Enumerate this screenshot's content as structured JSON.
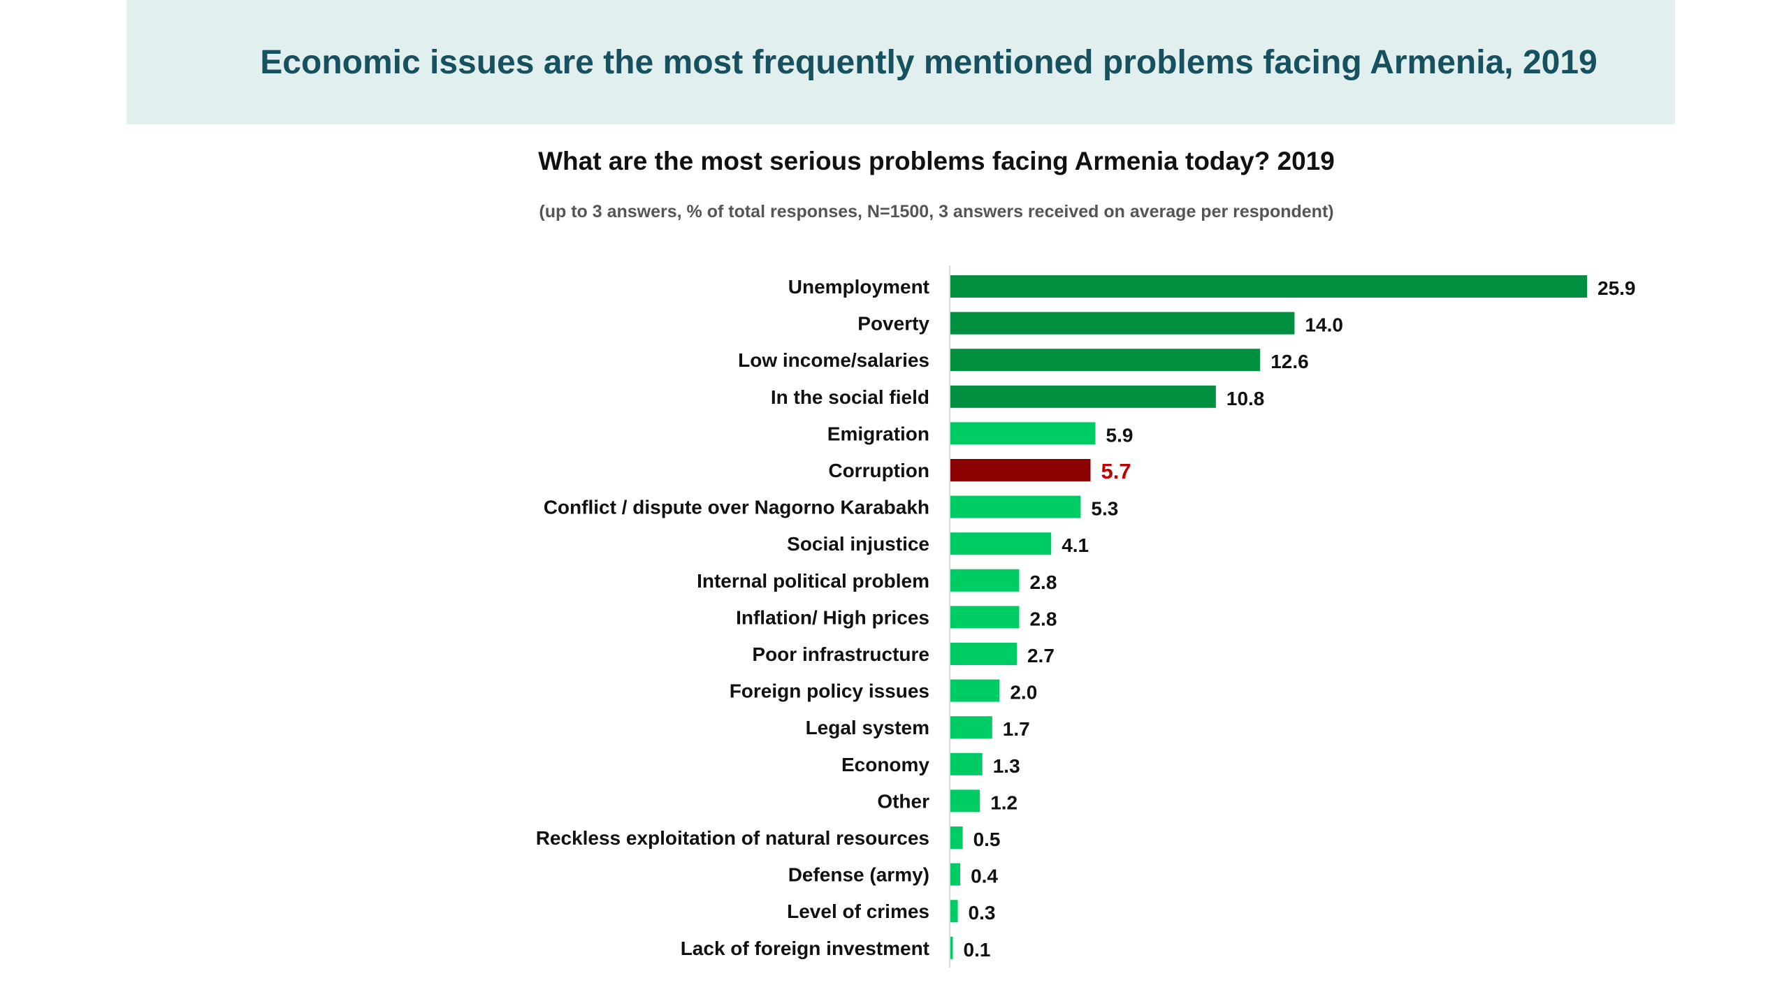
{
  "header": {
    "title": "Economic issues are the most frequently mentioned problems facing Armenia, 2019"
  },
  "colors": {
    "header_bg": "#e1efef",
    "title": "#17505f",
    "dark_green": "#009040",
    "light_green": "#00cc66",
    "highlight": "#8b0000",
    "highlight_label": "#c00000"
  },
  "chart_data": {
    "type": "bar",
    "orientation": "horizontal",
    "title": "What are the most serious problems facing Armenia today? 2019",
    "subtitle": "(up to 3 answers, % of total responses, N=1500, 3 answers received on average per respondent)",
    "categories": [
      "Unemployment",
      "Poverty",
      "Low income/salaries",
      "In the social field",
      "Emigration",
      "Corruption",
      "Conflict / dispute over Nagorno Karabakh",
      "Social injustice",
      "Internal political problem",
      "Inflation/ High prices",
      "Poor infrastructure",
      "Foreign policy issues",
      "Legal system",
      "Economy",
      "Other",
      "Reckless exploitation of natural resources",
      "Defense (army)",
      "Level of crimes",
      "Lack of foreign investment"
    ],
    "values": [
      25.9,
      14.0,
      12.6,
      10.8,
      5.9,
      5.7,
      5.3,
      4.1,
      2.8,
      2.8,
      2.7,
      2.0,
      1.7,
      1.3,
      1.2,
      0.5,
      0.4,
      0.3,
      0.1
    ],
    "value_labels": [
      "25.9",
      "14.0",
      "12.6",
      "10.8",
      "5.9",
      "5.7",
      "5.3",
      "4.1",
      "2.8",
      "2.8",
      "2.7",
      "2.0",
      "1.7",
      "1.3",
      "1.2",
      "0.5",
      "0.4",
      "0.3",
      "0.1"
    ],
    "bar_colors": [
      "dark",
      "dark",
      "dark",
      "dark",
      "light",
      "highlight",
      "light",
      "light",
      "light",
      "light",
      "light",
      "light",
      "light",
      "light",
      "light",
      "light",
      "light",
      "light",
      "light"
    ],
    "xlim": [
      0,
      26
    ],
    "grid": false,
    "legend": "none"
  }
}
